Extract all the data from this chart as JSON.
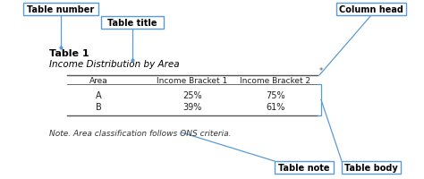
{
  "bg_color": "#ffffff",
  "table_number": "Table 1",
  "table_title": "Income Distribution by Area",
  "col_headers": [
    "Area",
    "Income Bracket 1",
    "Income Bracket 2"
  ],
  "rows": [
    [
      "A",
      "25%",
      "75%"
    ],
    [
      "B",
      "39%",
      "61%"
    ]
  ],
  "note_text": "Note. Area classification follows ONS criteria.",
  "labels": {
    "table_number": "Table number",
    "table_title": "Table title",
    "column_head": "Column head",
    "table_note": "Table note",
    "table_body": "Table body"
  },
  "label_box_color": "#ffffff",
  "label_box_edge": "#5b9bd5",
  "label_text_color": "#000000",
  "arrow_color": "#5b9bd5",
  "line_color": "#555555",
  "title_color": "#000000",
  "note_color": "#333333"
}
